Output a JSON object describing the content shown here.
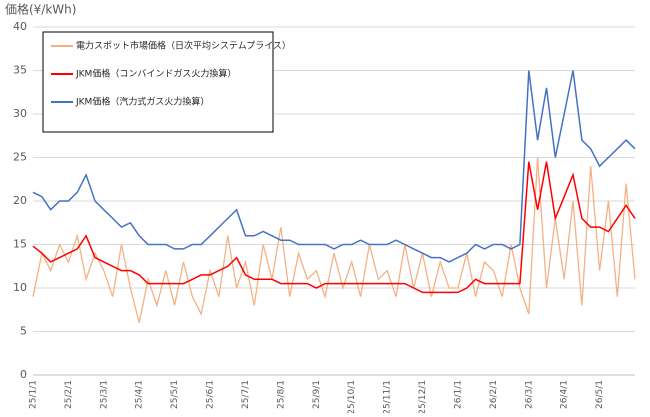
{
  "chart_data": {
    "type": "line",
    "ylabel": "価格(¥/kWh)",
    "categories": [
      "25/1/1",
      null,
      null,
      null,
      "25/2/1",
      null,
      null,
      null,
      "25/3/1",
      null,
      null,
      null,
      "25/4/1",
      null,
      null,
      null,
      "25/5/1",
      null,
      null,
      null,
      "25/6/1",
      null,
      null,
      null,
      "25/7/1",
      null,
      null,
      null,
      "25/8/1",
      null,
      null,
      null,
      "25/9/1",
      null,
      null,
      null,
      "25/10/1",
      null,
      null,
      null,
      "25/11/1",
      null,
      null,
      null,
      "25/12/1",
      null,
      null,
      null,
      "26/1/1",
      null,
      null,
      null,
      "26/2/1",
      null,
      null,
      null,
      "26/3/1",
      null,
      null,
      null,
      "26/4/1",
      null,
      null,
      null,
      "26/5/1",
      null,
      null,
      null,
      null
    ],
    "series": [
      {
        "name": "電力スポット市場価格（日次平均システムプライス）",
        "color": "#f4b183",
        "values": [
          9,
          14,
          12,
          15,
          13,
          16,
          11,
          14,
          12,
          9,
          15,
          10,
          6,
          11,
          8,
          12,
          8,
          13,
          9,
          7,
          12,
          9,
          16,
          10,
          13,
          8,
          15,
          11,
          17,
          9,
          14,
          11,
          12,
          9,
          14,
          10,
          13,
          9,
          15,
          11,
          12,
          9,
          15,
          10,
          14,
          9,
          13,
          10,
          10,
          14,
          9,
          13,
          12,
          9,
          15,
          10,
          7,
          25,
          10,
          18,
          11,
          20,
          8,
          24,
          12,
          20,
          9,
          22,
          11
        ]
      },
      {
        "name": "JKM価格（コンバインドガス火力換算）",
        "color": "#ff0000",
        "values": [
          14.8,
          14,
          13,
          13.5,
          14,
          14.5,
          16,
          13.5,
          13,
          12.5,
          12,
          12,
          11.5,
          10.5,
          10.5,
          10.5,
          10.5,
          10.5,
          11,
          11.5,
          11.5,
          12,
          12.5,
          13.5,
          11.5,
          11,
          11,
          11,
          10.5,
          10.5,
          10.5,
          10.5,
          10,
          10.5,
          10.5,
          10.5,
          10.5,
          10.5,
          10.5,
          10.5,
          10.5,
          10.5,
          10.5,
          10,
          9.5,
          9.5,
          9.5,
          9.5,
          9.5,
          10,
          11,
          10.5,
          10.5,
          10.5,
          10.5,
          10.5,
          24.5,
          19,
          24.5,
          18,
          20.5,
          23,
          18,
          17,
          17,
          16.5,
          18,
          19.5,
          18
        ]
      },
      {
        "name": "JKM価格（汽力式ガス火力換算）",
        "color": "#4472c4",
        "values": [
          21,
          20.5,
          19,
          20,
          20,
          21,
          23,
          20,
          19,
          18,
          17,
          17.5,
          16,
          15,
          15,
          15,
          14.5,
          14.5,
          15,
          15,
          16,
          17,
          18,
          19,
          16,
          16,
          16.5,
          16,
          15.5,
          15.5,
          15,
          15,
          15,
          15,
          14.5,
          15,
          15,
          15.5,
          15,
          15,
          15,
          15.5,
          15,
          14.5,
          14,
          13.5,
          13.5,
          13,
          13.5,
          14,
          15,
          14.5,
          15,
          15,
          14.5,
          15,
          35,
          27,
          33,
          25,
          30,
          35,
          27,
          26,
          24,
          25,
          26,
          27,
          26
        ]
      }
    ],
    "ylim": [
      0,
      40
    ],
    "yticks": [
      0,
      5,
      10,
      15,
      20,
      25,
      30,
      35,
      40
    ],
    "grid": true,
    "legend": "upper left"
  }
}
